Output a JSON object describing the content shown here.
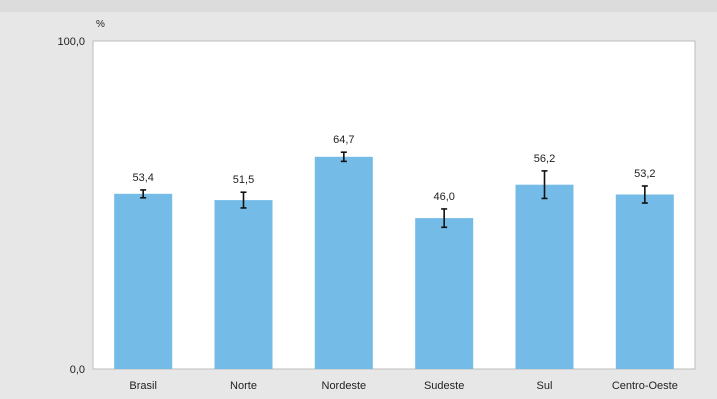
{
  "chart_data": {
    "type": "bar",
    "title": "",
    "ylabel": "%",
    "xlabel": "",
    "ylim": [
      0,
      100
    ],
    "ytick_labels": [
      "0,0",
      "100,0"
    ],
    "grid": false,
    "categories": [
      "Brasil",
      "Norte",
      "Nordeste",
      "Sudeste",
      "Sul",
      "Centro-Oeste"
    ],
    "values": [
      53.4,
      51.5,
      64.7,
      46.0,
      56.2,
      53.2
    ],
    "value_labels": [
      "53,4",
      "51,5",
      "64,7",
      "46,0",
      "56,2",
      "53,2"
    ],
    "error_low": [
      52.2,
      49.1,
      63.3,
      43.2,
      52.0,
      50.6
    ],
    "error_high": [
      54.6,
      53.9,
      66.1,
      48.8,
      60.4,
      55.8
    ],
    "bar_color": "#74bbe8",
    "error_color": "#111111"
  }
}
